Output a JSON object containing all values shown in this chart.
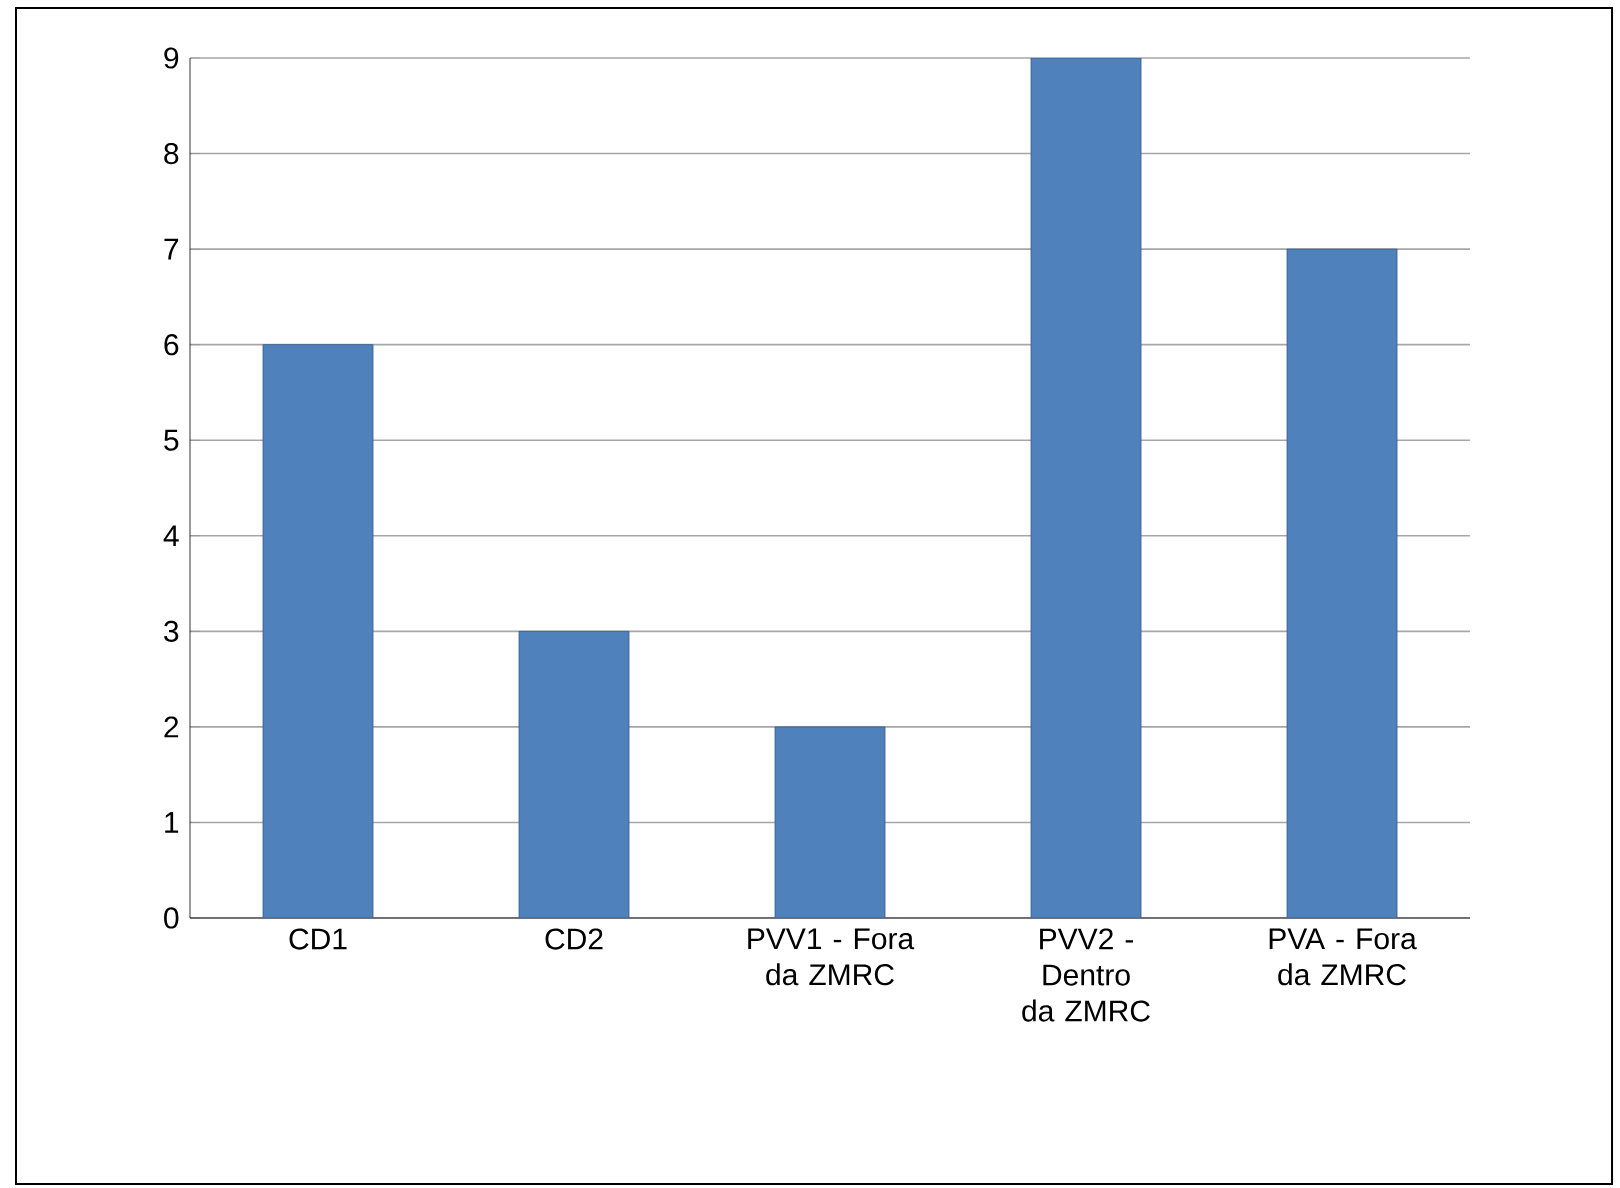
{
  "chart_data": {
    "type": "bar",
    "categories": [
      "CD1",
      "CD2",
      "PVV1 - Fora da ZMRC",
      "PVV2 - Dentro da ZMRC",
      "PVA - Fora da ZMRC"
    ],
    "values": [
      6,
      3,
      2,
      9,
      7
    ],
    "color": "#4f81bd",
    "ylim": [
      0,
      9
    ],
    "yticks": [
      0,
      1,
      2,
      3,
      4,
      5,
      6,
      7,
      8,
      9
    ],
    "grid": "y"
  }
}
